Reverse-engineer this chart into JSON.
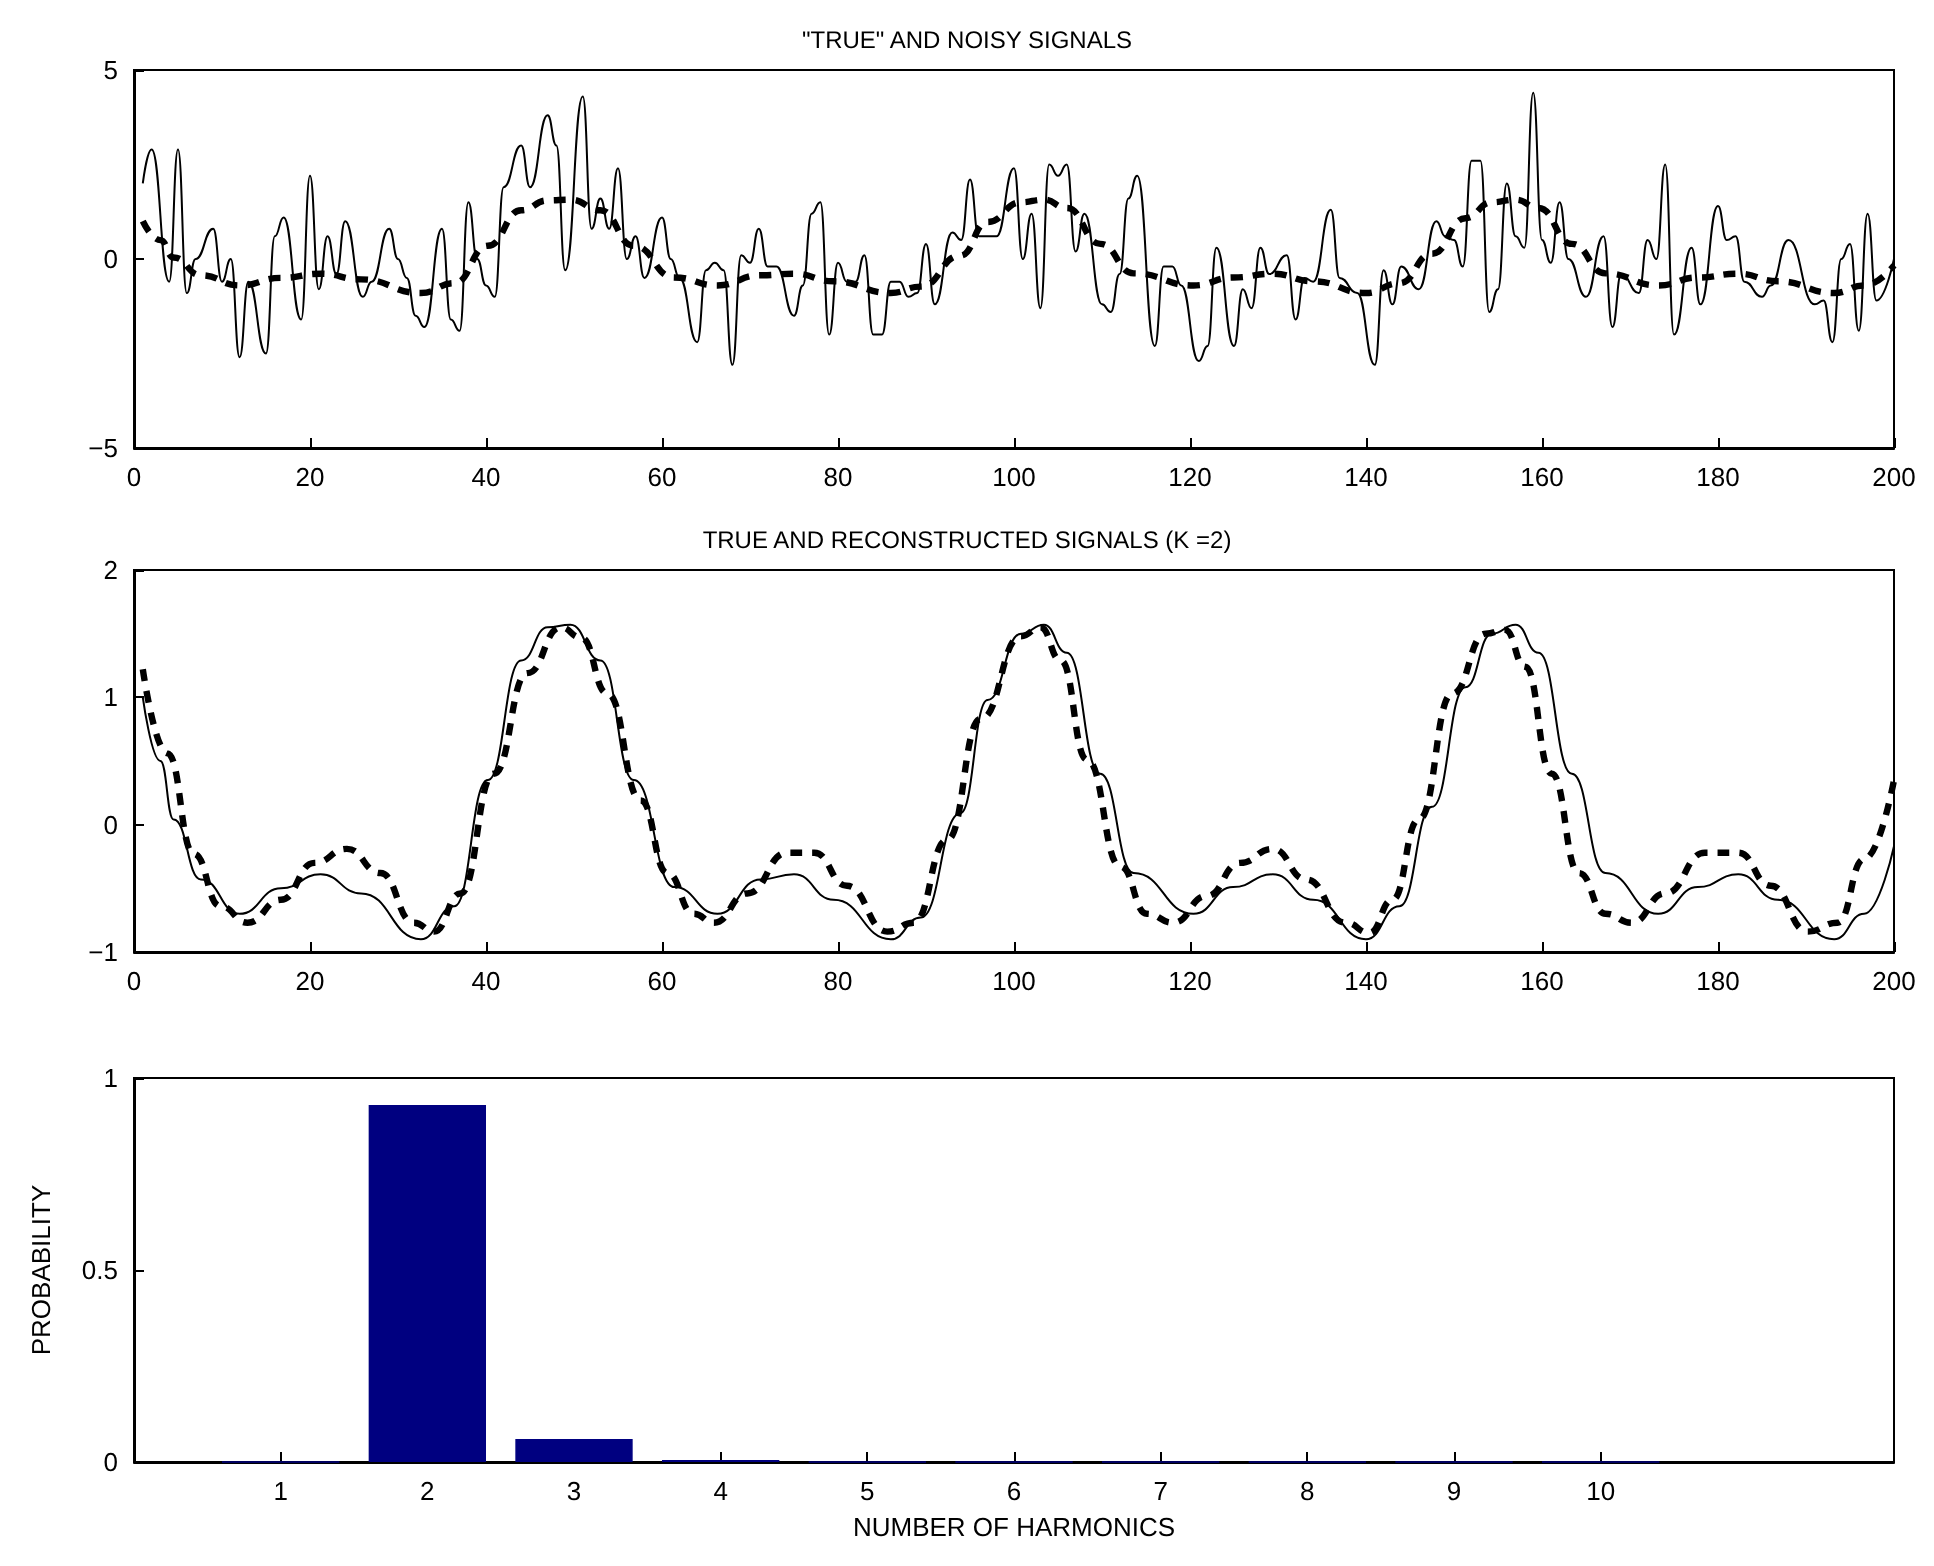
{
  "chart_data": [
    {
      "type": "line",
      "title": "\"TRUE\" AND NOISY SIGNALS",
      "xlim": [
        0,
        200
      ],
      "ylim": [
        -5,
        5
      ],
      "xticks": [
        0,
        20,
        40,
        60,
        80,
        100,
        120,
        140,
        160,
        180,
        200
      ],
      "yticks": [
        -5,
        0,
        5
      ],
      "grid": false,
      "marker": "none",
      "series": [
        {
          "color": "#000000",
          "line_style": "solid",
          "x": [
            1,
            2,
            4,
            5,
            6,
            7,
            9,
            10,
            11,
            12,
            13,
            15,
            16,
            17,
            19,
            20,
            21,
            22,
            23,
            24,
            26,
            27,
            29,
            30,
            31,
            32,
            33,
            35,
            36,
            37,
            38,
            39,
            40,
            41,
            42,
            44,
            45,
            47,
            48,
            49,
            51,
            52,
            53,
            54,
            55,
            56,
            57,
            58,
            60,
            61,
            62,
            64,
            65,
            66,
            67,
            68,
            69,
            70,
            71,
            72,
            73,
            75,
            76,
            77,
            78,
            79,
            80,
            81,
            82,
            83,
            84,
            85,
            86,
            87,
            88,
            89,
            90,
            91,
            93,
            94,
            95,
            96,
            98,
            100,
            101,
            102,
            103,
            104,
            105,
            106,
            107,
            108,
            110,
            111,
            112,
            113,
            114,
            116,
            117,
            118,
            119,
            121,
            122,
            123,
            125,
            126,
            127,
            128,
            129,
            131,
            132,
            133,
            134,
            136,
            137,
            139,
            141,
            142,
            143,
            144,
            146,
            148,
            149,
            150,
            151,
            152,
            153,
            154,
            155,
            156,
            157,
            158,
            159,
            160,
            161,
            162,
            163,
            165,
            167,
            168,
            169,
            171,
            172,
            173,
            174,
            175,
            177,
            178,
            180,
            181,
            182,
            183,
            185,
            186,
            188,
            191,
            192,
            193,
            194,
            195,
            196,
            197,
            198,
            200
          ],
          "values": [
            2,
            2.9,
            -0.6,
            2.9,
            -0.9,
            0,
            0.8,
            -0.6,
            0,
            -2.6,
            -0.6,
            -2.5,
            0.6,
            1.1,
            -1.6,
            2.2,
            -0.8,
            0.6,
            -0.4,
            1,
            -1,
            -0.6,
            0.8,
            0,
            -0.5,
            -1.5,
            -1.8,
            0.8,
            -1.6,
            -1.9,
            1.5,
            0,
            -0.7,
            -1,
            1.9,
            3,
            1.9,
            3.8,
            3,
            -0.3,
            4.3,
            0.8,
            1.6,
            0.8,
            2.4,
            0,
            0.6,
            -0.5,
            1.1,
            0,
            -0.5,
            -2.2,
            -0.3,
            -0.1,
            -0.3,
            -2.8,
            0.1,
            -0.1,
            0.8,
            -0.2,
            -0.2,
            -1.5,
            -0.7,
            1.2,
            1.5,
            -2,
            -0.1,
            -0.6,
            -0.6,
            0.1,
            -2,
            -2,
            -0.6,
            -0.6,
            -1,
            -0.9,
            0.4,
            -1.2,
            0.7,
            0.5,
            2.1,
            0.6,
            0.6,
            2.4,
            0,
            1.2,
            -1.3,
            2.5,
            2.2,
            2.5,
            0.2,
            1.2,
            -1.2,
            -1.4,
            -0.4,
            1.6,
            2.2,
            -2.3,
            -0.2,
            -0.2,
            -0.7,
            -2.7,
            -2.3,
            0.3,
            -2.3,
            -0.8,
            -1.3,
            0.3,
            -0.4,
            0.1,
            -1.6,
            -0.5,
            -0.6,
            1.3,
            -0.5,
            -0.9,
            -2.8,
            -0.3,
            -1.2,
            -0.2,
            -0.8,
            1,
            0.6,
            0.5,
            -0.2,
            2.6,
            2.6,
            -1.4,
            -0.8,
            2,
            0.6,
            0.3,
            4.4,
            0.5,
            -0.1,
            1.5,
            0,
            -1,
            0.6,
            -1.8,
            -0.4,
            -0.9,
            0.5,
            0,
            2.5,
            -2,
            0.3,
            -1.2,
            1.4,
            0.5,
            0.6,
            -0.6,
            -1,
            -0.7,
            0.5,
            -1.2,
            -1.1,
            -2.2,
            0,
            0.4,
            -1.9,
            1.2,
            -1.1,
            0
          ]
        },
        {
          "color": "#000000",
          "line_style": "dashed",
          "x": [
            1,
            3,
            4.5,
            7.6,
            12,
            16.7,
            21.2,
            25.8,
            32.6,
            36.4,
            40.2,
            44,
            47,
            49.6,
            53,
            56.8,
            61.4,
            66.3,
            71.2,
            75,
            79.5,
            86,
            89.4,
            93.9,
            97,
            100.8,
            103.4,
            106,
            109.8,
            113.6,
            120.4,
            124.9,
            129.4,
            134,
            140,
            143.8,
            147.5,
            151.3,
            154.3,
            157,
            159.6,
            163.4,
            167.2,
            173.2,
            177.7,
            182.3,
            186.8,
            193.2,
            196.6,
            200
          ],
          "values": [
            1,
            0.5,
            0.04,
            -0.43,
            -0.7,
            -0.5,
            -0.39,
            -0.54,
            -0.9,
            -0.64,
            0.35,
            1.29,
            1.55,
            1.57,
            1.29,
            0.35,
            -0.49,
            -0.7,
            -0.43,
            -0.39,
            -0.59,
            -0.9,
            -0.73,
            0.09,
            0.98,
            1.5,
            1.57,
            1.35,
            0.4,
            -0.38,
            -0.7,
            -0.49,
            -0.39,
            -0.59,
            -0.9,
            -0.64,
            0.14,
            1.08,
            1.5,
            1.57,
            1.35,
            0.4,
            -0.38,
            -0.7,
            -0.49,
            -0.39,
            -0.59,
            -0.9,
            -0.7,
            -0.17
          ]
        }
      ]
    },
    {
      "type": "line",
      "title": "TRUE AND RECONSTRUCTED SIGNALS (K =2)",
      "xlim": [
        0,
        200
      ],
      "ylim": [
        -1,
        2
      ],
      "xticks": [
        0,
        20,
        40,
        60,
        80,
        100,
        120,
        140,
        160,
        180,
        200
      ],
      "yticks": [
        -1,
        0,
        1,
        2
      ],
      "grid": false,
      "marker": "none",
      "series": [
        {
          "color": "#000000",
          "line_style": "solid",
          "x": [
            1,
            3,
            4.5,
            7.6,
            12,
            16.7,
            21.2,
            25.8,
            32.6,
            36.4,
            40.2,
            44,
            47,
            49.6,
            53,
            56.8,
            61.4,
            66.3,
            71.2,
            75,
            79.5,
            86,
            89.4,
            93.9,
            97,
            100.8,
            103.4,
            106,
            109.8,
            113.6,
            120.4,
            124.9,
            129.4,
            134,
            140,
            143.8,
            147.5,
            151.3,
            154.3,
            157,
            159.6,
            163.4,
            167.2,
            173.2,
            177.7,
            182.3,
            186.8,
            193.2,
            196.6,
            200
          ],
          "values": [
            1,
            0.5,
            0.04,
            -0.43,
            -0.7,
            -0.5,
            -0.39,
            -0.54,
            -0.9,
            -0.64,
            0.35,
            1.29,
            1.55,
            1.57,
            1.29,
            0.35,
            -0.49,
            -0.7,
            -0.43,
            -0.39,
            -0.59,
            -0.9,
            -0.73,
            0.09,
            0.98,
            1.5,
            1.57,
            1.35,
            0.4,
            -0.38,
            -0.7,
            -0.49,
            -0.39,
            -0.59,
            -0.9,
            -0.64,
            0.14,
            1.08,
            1.5,
            1.57,
            1.35,
            0.4,
            -0.38,
            -0.7,
            -0.49,
            -0.39,
            -0.59,
            -0.9,
            -0.7,
            -0.17
          ]
        },
        {
          "color": "#000000",
          "line_style": "dashed",
          "x": [
            1,
            3.8,
            6.8,
            9.8,
            12.9,
            16.7,
            20.5,
            24.2,
            28,
            31.8,
            34.1,
            37.1,
            40.9,
            44.7,
            48.5,
            50.8,
            53.8,
            57.6,
            60.6,
            63.6,
            65.9,
            69.7,
            74.2,
            77.3,
            81,
            85.6,
            88.6,
            92.4,
            96.2,
            100.8,
            103,
            105.3,
            108.3,
            112.1,
            115.1,
            118.1,
            121.9,
            125.7,
            129.4,
            133.2,
            137.7,
            140.4,
            143,
            146,
            149.8,
            153.6,
            155.8,
            158.1,
            161.1,
            164.2,
            167.2,
            170.2,
            174,
            178.5,
            182.3,
            186,
            190.2,
            193.6,
            196.6,
            200
          ],
          "values": [
            1.22,
            0.56,
            -0.23,
            -0.64,
            -0.77,
            -0.59,
            -0.3,
            -0.19,
            -0.38,
            -0.77,
            -0.84,
            -0.54,
            0.4,
            1.19,
            1.55,
            1.47,
            1.03,
            0.19,
            -0.38,
            -0.7,
            -0.77,
            -0.54,
            -0.22,
            -0.22,
            -0.48,
            -0.84,
            -0.77,
            -0.12,
            0.83,
            1.48,
            1.55,
            1.29,
            0.51,
            -0.33,
            -0.7,
            -0.77,
            -0.56,
            -0.3,
            -0.19,
            -0.43,
            -0.77,
            -0.85,
            -0.59,
            0.04,
            1.03,
            1.5,
            1.53,
            1.24,
            0.4,
            -0.38,
            -0.7,
            -0.77,
            -0.54,
            -0.22,
            -0.22,
            -0.48,
            -0.84,
            -0.77,
            -0.27,
            0.35
          ]
        }
      ]
    },
    {
      "type": "bar",
      "xlabel": "NUMBER OF HARMONICS",
      "ylabel": "PROBABILITY",
      "xlim": [
        0,
        12
      ],
      "ylim": [
        0,
        1
      ],
      "xticks": [
        1,
        2,
        3,
        4,
        5,
        6,
        7,
        8,
        9,
        10
      ],
      "yticks": [
        0,
        0.5,
        1
      ],
      "grid": false,
      "x": [
        1,
        2,
        3,
        4,
        5,
        6,
        7,
        8,
        9,
        10
      ],
      "values": [
        0,
        0.93,
        0.06,
        0.005,
        0,
        0,
        0,
        0,
        0,
        0
      ],
      "color": "#000080"
    }
  ]
}
